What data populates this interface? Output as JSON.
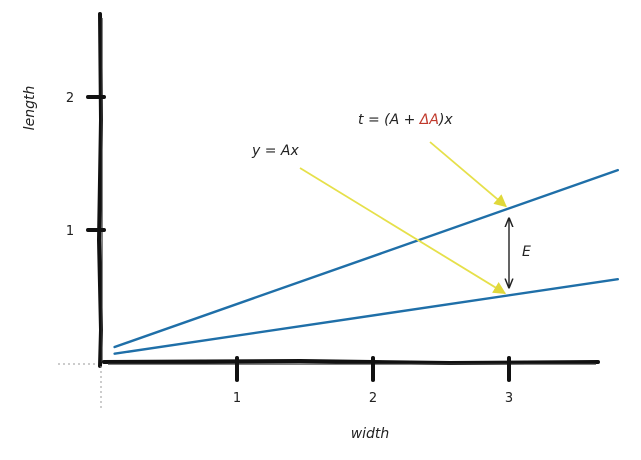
{
  "chart_data": {
    "type": "line",
    "xlabel": "width",
    "ylabel": "length",
    "xlim": [
      -0.1,
      3.8
    ],
    "ylim": [
      0,
      2.6
    ],
    "xticks": [
      "1",
      "2",
      "3"
    ],
    "yticks": [
      "1",
      "2"
    ],
    "grid": false,
    "series": [
      {
        "name": "y = Ax",
        "x": [
          0.1,
          3.8
        ],
        "y": [
          0.07,
          0.63
        ],
        "color": "#1f6fa8"
      },
      {
        "name": "t = (A + ΔA)x",
        "x": [
          0.1,
          3.8
        ],
        "y": [
          0.12,
          1.45
        ],
        "color": "#1f6fa8"
      }
    ],
    "annotations": {
      "y_label": "y = Ax",
      "t_prefix": "t = (A + ",
      "t_delta": "ΔA",
      "t_suffix": ")x",
      "error_label": "E",
      "error_at_x": 3,
      "arrow_color": "#e8e84a",
      "delta_color": "#c0392b"
    }
  }
}
